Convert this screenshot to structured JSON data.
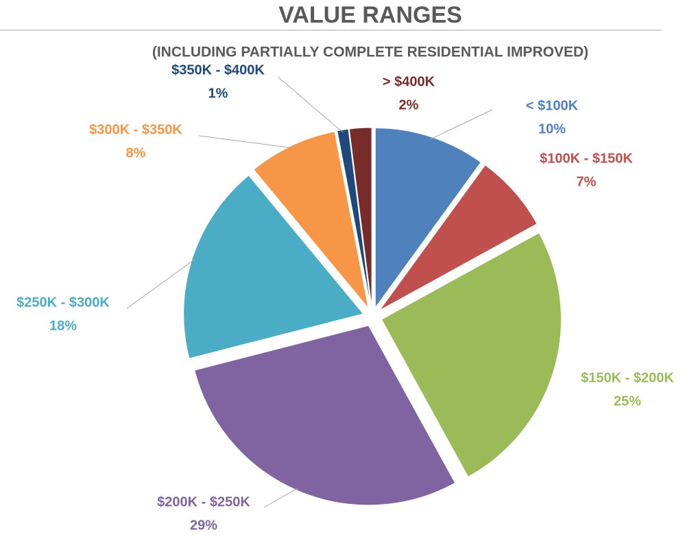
{
  "chart_data": {
    "type": "pie",
    "title": "VALUE RANGES",
    "subtitle": "(INCLUDING PARTIALLY COMPLETE RESIDENTIAL IMPROVED)",
    "categories": [
      "< $100K",
      "$100K - $150K",
      "$150K - $200K",
      "$200K - $250K",
      "$250K - $300K",
      "$300K - $350K",
      "$350K - $400K",
      "> $400K"
    ],
    "values": [
      10,
      7,
      25,
      29,
      18,
      8,
      1,
      2
    ],
    "value_labels": [
      "10%",
      "7%",
      "25%",
      "29%",
      "18%",
      "8%",
      "1%",
      "2%"
    ],
    "colors": [
      "#4f81bd",
      "#c0504d",
      "#9bbb59",
      "#8064a2",
      "#4bacc6",
      "#f79646",
      "#1f497d",
      "#772c2a"
    ]
  }
}
